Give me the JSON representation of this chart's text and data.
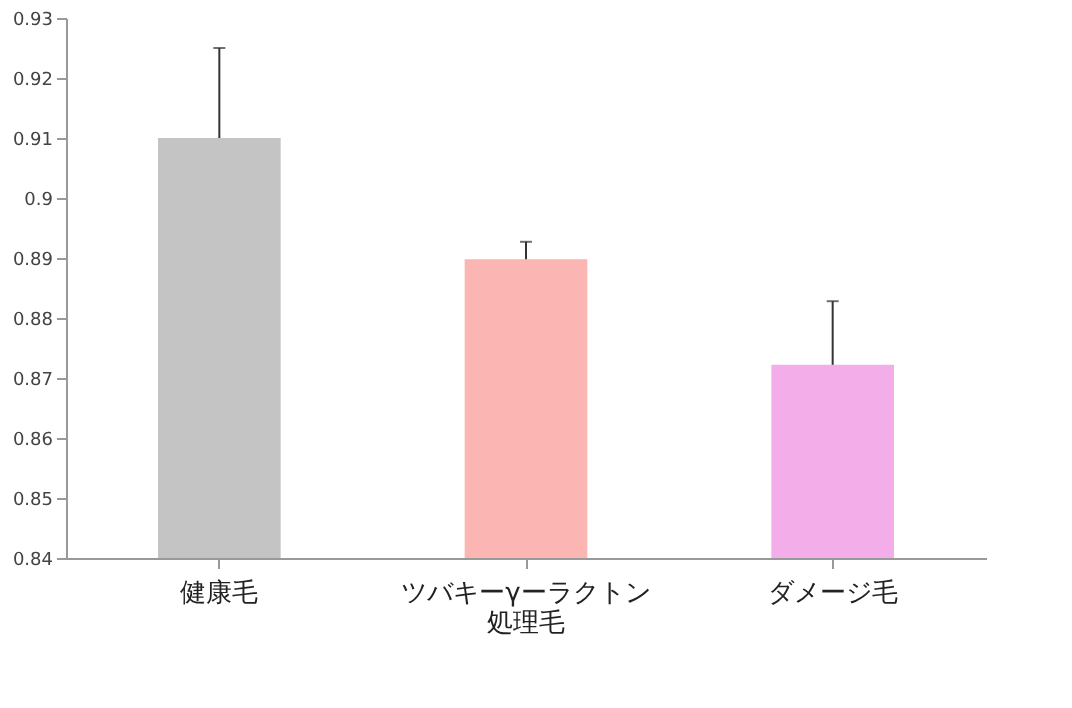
{
  "chart_data": {
    "type": "bar",
    "categories": [
      "健康毛",
      "ツバキーγーラクトン処理毛",
      "ダメージ毛"
    ],
    "values": [
      0.91,
      0.8898,
      0.8722
    ],
    "colors": [
      "#c4c4c4",
      "#fbb6b3",
      "#f3aeea"
    ],
    "errors": [
      [
        0.91,
        0.925
      ],
      [
        0.8898,
        0.8927
      ],
      [
        0.8722,
        0.8828
      ]
    ],
    "ylim": [
      0.84,
      0.93
    ],
    "yticks": [
      0.84,
      0.85,
      0.86,
      0.87,
      0.88,
      0.89,
      0.9,
      0.91,
      0.92,
      0.93
    ],
    "grid": false,
    "legend": false
  }
}
